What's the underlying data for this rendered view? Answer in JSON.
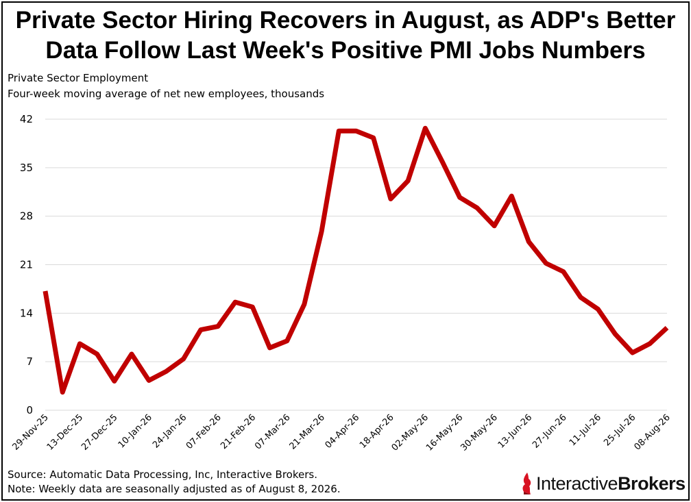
{
  "title_line1": "Private Sector Hiring Recovers in August, as ADP's Better",
  "title_line2": "Data Follow Last Week's Positive PMI Jobs Numbers",
  "subtitle1": "Private Sector Employment",
  "subtitle2": "Four-week moving average of net new employees, thousands",
  "footer_source": "Source: Automatic Data Processing, Inc, Interactive Brokers.",
  "footer_note": "Note: Weekly data are seasonally adjusted as of August 8, 2026.",
  "logo": {
    "word1": "Interactive",
    "word2": "Brokers",
    "icon": "interactive-brokers-flame-icon"
  },
  "colors": {
    "line": "#c00000",
    "grid": "#d9d9d9"
  },
  "chart_data": {
    "type": "line",
    "title": "",
    "xlabel": "",
    "ylabel": "",
    "ylim": [
      0,
      42
    ],
    "yticks": [
      0,
      7,
      14,
      21,
      28,
      35,
      42
    ],
    "grid": true,
    "legend": "none",
    "xtick_labels": [
      "29-Nov-25",
      "13-Dec-25",
      "27-Dec-25",
      "10-Jan-26",
      "24-Jan-26",
      "07-Feb-26",
      "21-Feb-26",
      "07-Mar-26",
      "21-Mar-26",
      "04-Apr-26",
      "18-Apr-26",
      "02-May-26",
      "16-May-26",
      "30-May-26",
      "13-Jun-26",
      "27-Jun-26",
      "11-Jul-26",
      "25-Jul-26",
      "08-Aug-26"
    ],
    "x": [
      "29-Nov-25",
      "06-Dec-25",
      "13-Dec-25",
      "20-Dec-25",
      "27-Dec-25",
      "03-Jan-26",
      "10-Jan-26",
      "17-Jan-26",
      "24-Jan-26",
      "31-Jan-26",
      "07-Feb-26",
      "14-Feb-26",
      "21-Feb-26",
      "28-Feb-26",
      "07-Mar-26",
      "14-Mar-26",
      "21-Mar-26",
      "28-Mar-26",
      "04-Apr-26",
      "11-Apr-26",
      "18-Apr-26",
      "25-Apr-26",
      "02-May-26",
      "09-May-26",
      "16-May-26",
      "23-May-26",
      "30-May-26",
      "06-Jun-26",
      "13-Jun-26",
      "20-Jun-26",
      "27-Jun-26",
      "04-Jul-26",
      "11-Jul-26",
      "18-Jul-26",
      "25-Jul-26",
      "01-Aug-26",
      "08-Aug-26"
    ],
    "series": [
      {
        "values": [
          17.2,
          2.6,
          9.6,
          8.1,
          4.2,
          8.1,
          4.3,
          5.6,
          7.4,
          11.6,
          12.1,
          15.6,
          14.9,
          9.0,
          10.0,
          15.3,
          25.8,
          40.3,
          40.3,
          39.3,
          30.5,
          33.1,
          40.7,
          35.8,
          30.7,
          29.2,
          26.6,
          30.9,
          24.3,
          21.2,
          20.0,
          16.3,
          14.6,
          11.0,
          8.3,
          9.6,
          11.9
        ]
      }
    ]
  }
}
